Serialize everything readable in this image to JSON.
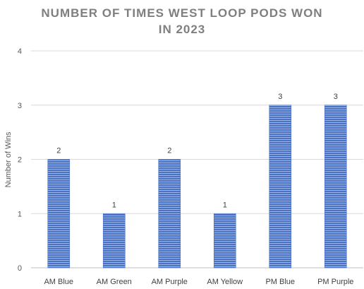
{
  "chart_data": {
    "type": "bar",
    "title_lines": [
      "NUMBER OF TIMES WEST LOOP PODS WON",
      "IN 2023"
    ],
    "xlabel": "",
    "ylabel": "Number of Wins",
    "categories": [
      "AM Blue",
      "AM Green",
      "AM Purple",
      "AM Yellow",
      "PM Blue",
      "PM Purple"
    ],
    "values": [
      2,
      1,
      2,
      1,
      3,
      3
    ],
    "ylim": [
      0,
      4
    ],
    "yticks": [
      "0",
      "1",
      "2",
      "3",
      "4"
    ],
    "grid": true,
    "legend": "none",
    "data_labels": true,
    "colors": {
      "bar": "#4a72c4",
      "bar_stripe": "#9cb5e3"
    }
  }
}
